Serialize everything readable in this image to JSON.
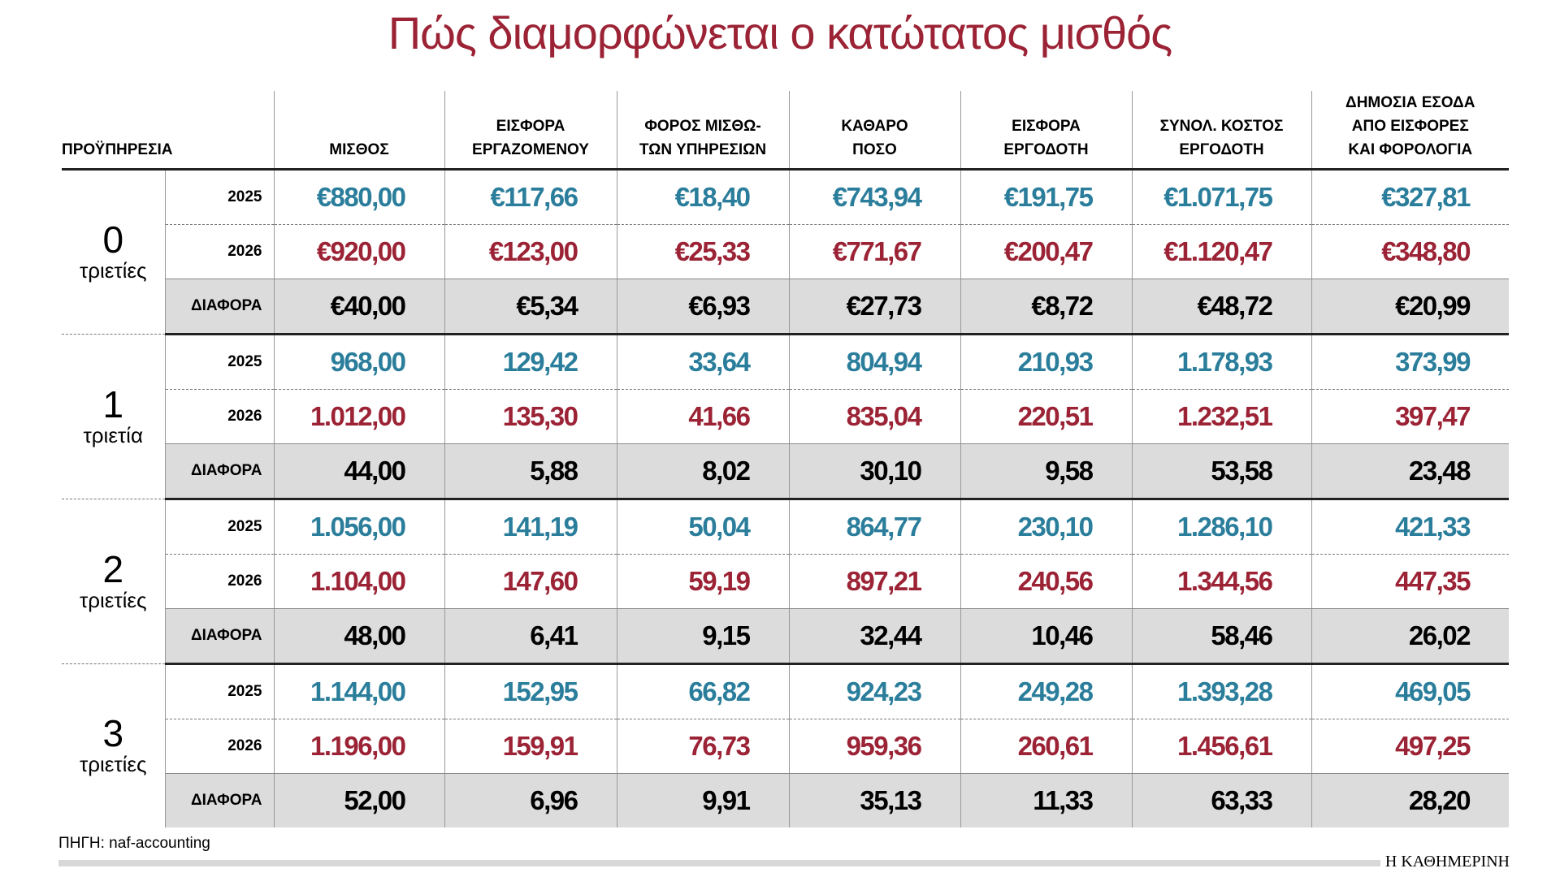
{
  "title": "Πώς διαμορφώνεται ο κατώτατος μισθός",
  "headers": [
    "ΠΡΟΫΠΗΡΕΣΙΑ",
    "ΜΙΣΘΟΣ",
    "ΕΙΣΦΟΡΑ\nΕΡΓΑΖΟΜΕΝΟΥ",
    "ΦΟΡΟΣ ΜΙΣΘΩ-\nΤΩΝ ΥΠΗΡΕΣΙΩΝ",
    "ΚΑΘΑΡΟ\nΠΟΣΟ",
    "ΕΙΣΦΟΡΑ\nΕΡΓΟΔΟΤΗ",
    "ΣΥΝΟΛ. ΚΟΣΤΟΣ\nΕΡΓΟΔΟΤΗ",
    "ΔΗΜΟΣΙΑ ΕΣΟΔΑ\nΑΠΟ ΕΙΣΦΟΡΕΣ\nΚΑΙ ΦΟΡΟΛΟΓΙΑ"
  ],
  "groups": [
    {
      "number": "0",
      "unit": "τριετίες",
      "rows": [
        {
          "label": "2025",
          "cells": [
            "€880,00",
            "€117,66",
            "€18,40",
            "€743,94",
            "€191,75",
            "€1.071,75",
            "€327,81"
          ]
        },
        {
          "label": "2026",
          "cells": [
            "€920,00",
            "€123,00",
            "€25,33",
            "€771,67",
            "€200,47",
            "€1.120,47",
            "€348,80"
          ]
        },
        {
          "label": "ΔΙΑΦΟΡΑ",
          "cells": [
            "€40,00",
            "€5,34",
            "€6,93",
            "€27,73",
            "€8,72",
            "€48,72",
            "€20,99"
          ]
        }
      ]
    },
    {
      "number": "1",
      "unit": "τριετία",
      "rows": [
        {
          "label": "2025",
          "cells": [
            "968,00",
            "129,42",
            "33,64",
            "804,94",
            "210,93",
            "1.178,93",
            "373,99"
          ]
        },
        {
          "label": "2026",
          "cells": [
            "1.012,00",
            "135,30",
            "41,66",
            "835,04",
            "220,51",
            "1.232,51",
            "397,47"
          ]
        },
        {
          "label": "ΔΙΑΦΟΡΑ",
          "cells": [
            "44,00",
            "5,88",
            "8,02",
            "30,10",
            "9,58",
            "53,58",
            "23,48"
          ]
        }
      ]
    },
    {
      "number": "2",
      "unit": "τριετίες",
      "rows": [
        {
          "label": "2025",
          "cells": [
            "1.056,00",
            "141,19",
            "50,04",
            "864,77",
            "230,10",
            "1.286,10",
            "421,33"
          ]
        },
        {
          "label": "2026",
          "cells": [
            "1.104,00",
            "147,60",
            "59,19",
            "897,21",
            "240,56",
            "1.344,56",
            "447,35"
          ]
        },
        {
          "label": "ΔΙΑΦΟΡΑ",
          "cells": [
            "48,00",
            "6,41",
            "9,15",
            "32,44",
            "10,46",
            "58,46",
            "26,02"
          ]
        }
      ]
    },
    {
      "number": "3",
      "unit": "τριετίες",
      "rows": [
        {
          "label": "2025",
          "cells": [
            "1.144,00",
            "152,95",
            "66,82",
            "924,23",
            "249,28",
            "1.393,28",
            "469,05"
          ]
        },
        {
          "label": "2026",
          "cells": [
            "1.196,00",
            "159,91",
            "76,73",
            "959,36",
            "260,61",
            "1.456,61",
            "497,25"
          ]
        },
        {
          "label": "ΔΙΑΦΟΡΑ",
          "cells": [
            "52,00",
            "6,96",
            "9,91",
            "35,13",
            "11,33",
            "63,33",
            "28,20"
          ]
        }
      ]
    }
  ],
  "source": "ΠΗΓΗ: naf-accounting",
  "brand": "Η ΚΑΘΗΜΕΡΙΝΗ"
}
